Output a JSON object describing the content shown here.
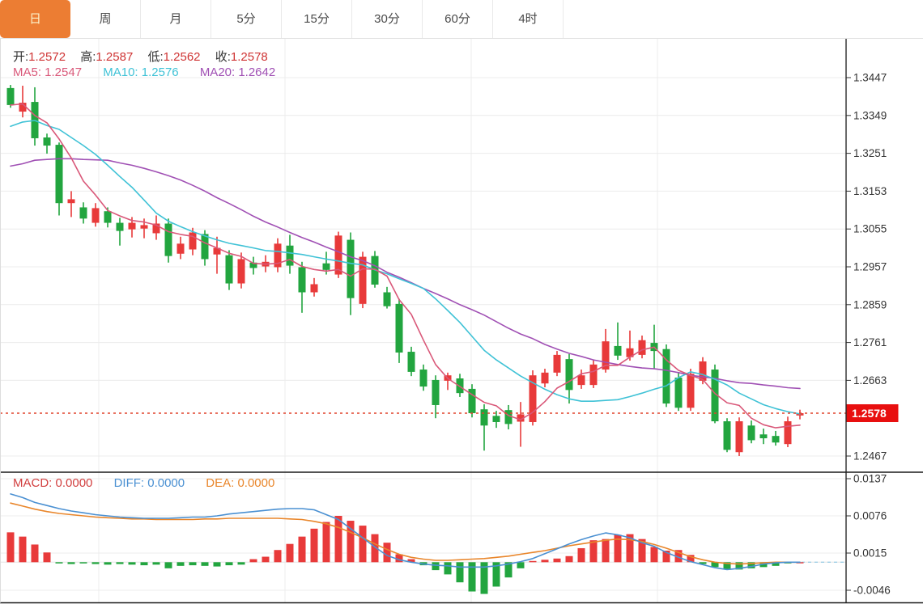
{
  "tabbar": {
    "items": [
      "日",
      "周",
      "月",
      "5分",
      "15分",
      "30分",
      "60分",
      "4时"
    ],
    "selected_index": 0
  },
  "ohlc_legend": {
    "open_label": "开:",
    "open_value": "1.2572",
    "high_label": "高:",
    "high_value": "1.2587",
    "low_label": "低:",
    "low_value": "1.2562",
    "close_label": "收:",
    "close_value": "1.2578"
  },
  "ma_legend": {
    "ma5": "MA5: 1.2547",
    "ma10": "MA10: 1.2576",
    "ma20": "MA20: 1.2642"
  },
  "macd_legend": {
    "macd": "MACD: 0.0000",
    "diff": "DIFF: 0.0000",
    "dea": "DEA: 0.0000"
  },
  "price_axis": {
    "tick_labels": [
      "1.3447",
      "1.3349",
      "1.3251",
      "1.3153",
      "1.3055",
      "1.2957",
      "1.2859",
      "1.2761",
      "1.2663",
      "1.2467"
    ],
    "tick_values": [
      1.3447,
      1.3349,
      1.3251,
      1.3153,
      1.3055,
      1.2957,
      1.2859,
      1.2761,
      1.2663,
      1.2467
    ],
    "last_price_label": "1.2578",
    "last_price": 1.2578
  },
  "macd_axis": {
    "tick_labels": [
      "0.0137",
      "0.0076",
      "0.0015",
      "-0.0046"
    ],
    "tick_values": [
      0.0137,
      0.0076,
      0.0015,
      -0.0046
    ]
  },
  "colors": {
    "up": "#e83a3a",
    "down": "#22a53f",
    "ma5": "#d95879",
    "ma10": "#3fc2d6",
    "ma20": "#a050b4",
    "diff": "#4a90d2",
    "dea": "#e9862b",
    "macd_label": "#d23f3f",
    "tab_accent": "#ec7d33",
    "badge": "#e80f0f",
    "price_line": "#e0432d",
    "grid": "#ececec",
    "axis": "#333333"
  },
  "chart_data": [
    {
      "type": "candlestick",
      "title": "Daily K-line with MA5/MA10/MA20",
      "legend_position": "top-left",
      "grid": true,
      "ylim": [
        1.242,
        1.35
      ],
      "last_price": 1.2578,
      "candles_ohlc": [
        [
          1.342,
          1.3428,
          1.3369,
          1.3376
        ],
        [
          1.3359,
          1.3426,
          1.3344,
          1.3382
        ],
        [
          1.3384,
          1.3422,
          1.3271,
          1.329
        ],
        [
          1.3292,
          1.3302,
          1.325,
          1.3271
        ],
        [
          1.3273,
          1.3279,
          1.309,
          1.3122
        ],
        [
          1.3122,
          1.3153,
          1.3086,
          1.3132
        ],
        [
          1.3111,
          1.3124,
          1.3069,
          1.3082
        ],
        [
          1.3071,
          1.3122,
          1.3061,
          1.3109
        ],
        [
          1.3101,
          1.3111,
          1.3059,
          1.3071
        ],
        [
          1.3071,
          1.3084,
          1.3012,
          1.305
        ],
        [
          1.3054,
          1.3086,
          1.3033,
          1.3071
        ],
        [
          1.3056,
          1.3082,
          1.3031,
          1.3065
        ],
        [
          1.3044,
          1.309,
          1.3027,
          1.3069
        ],
        [
          1.3069,
          1.3082,
          1.2968,
          1.2985
        ],
        [
          1.2991,
          1.3035,
          1.2977,
          1.3017
        ],
        [
          1.3002,
          1.3058,
          1.2987,
          1.3046
        ],
        [
          1.3042,
          1.3052,
          1.296,
          1.2977
        ],
        [
          1.2989,
          1.3035,
          1.2939,
          1.3006
        ],
        [
          1.2987,
          1.3,
          1.2897,
          1.2914
        ],
        [
          1.2914,
          1.2994,
          1.2901,
          1.2977
        ],
        [
          1.2968,
          1.2983,
          1.2937,
          1.2954
        ],
        [
          1.2958,
          1.2987,
          1.2943,
          1.297
        ],
        [
          1.2956,
          1.3031,
          1.2943,
          1.3017
        ],
        [
          1.3012,
          1.304,
          1.2939,
          1.296
        ],
        [
          1.2956,
          1.297,
          1.2838,
          1.2891
        ],
        [
          1.2891,
          1.2928,
          1.288,
          1.2912
        ],
        [
          1.2966,
          1.2996,
          1.2937,
          1.2949
        ],
        [
          1.2937,
          1.3048,
          1.2928,
          1.3038
        ],
        [
          1.3027,
          1.3046,
          1.2832,
          1.2876
        ],
        [
          1.2861,
          1.2996,
          1.285,
          1.2983
        ],
        [
          1.2985,
          1.2998,
          1.2903,
          1.2911
        ],
        [
          1.2891,
          1.2905,
          1.2849,
          1.2855
        ],
        [
          1.2861,
          1.2874,
          1.2708,
          1.2735
        ],
        [
          1.2737,
          1.275,
          1.2674,
          1.2685
        ],
        [
          1.2691,
          1.2704,
          1.2636,
          1.2647
        ],
        [
          1.2664,
          1.2676,
          1.2565,
          1.2599
        ],
        [
          1.2662,
          1.2683,
          1.2638,
          1.2676
        ],
        [
          1.2668,
          1.268,
          1.262,
          1.263
        ],
        [
          1.2641,
          1.2653,
          1.2567,
          1.2578
        ],
        [
          1.2588,
          1.2601,
          1.2481,
          1.2546
        ],
        [
          1.2571,
          1.2584,
          1.254,
          1.2555
        ],
        [
          1.2586,
          1.2599,
          1.2536,
          1.255
        ],
        [
          1.2556,
          1.2607,
          1.2491,
          1.2575
        ],
        [
          1.2555,
          1.2689,
          1.2546,
          1.2676
        ],
        [
          1.2655,
          1.2693,
          1.2645,
          1.2683
        ],
        [
          1.2683,
          1.2739,
          1.2674,
          1.2729
        ],
        [
          1.2718,
          1.2731,
          1.2603,
          1.2638
        ],
        [
          1.2651,
          1.2691,
          1.2641,
          1.2676
        ],
        [
          1.2651,
          1.2716,
          1.2643,
          1.2704
        ],
        [
          1.2691,
          1.2796,
          1.2683,
          1.2764
        ],
        [
          1.2752,
          1.2813,
          1.2716,
          1.2727
        ],
        [
          1.2723,
          1.2792,
          1.2714,
          1.2746
        ],
        [
          1.2729,
          1.2779,
          1.272,
          1.2767
        ],
        [
          1.276,
          1.2807,
          1.2693,
          1.2739
        ],
        [
          1.2744,
          1.2756,
          1.2594,
          1.2603
        ],
        [
          1.267,
          1.2683,
          1.2584,
          1.2592
        ],
        [
          1.2592,
          1.2693,
          1.2584,
          1.268
        ],
        [
          1.2662,
          1.2723,
          1.2653,
          1.2712
        ],
        [
          1.2691,
          1.2704,
          1.2552,
          1.2557
        ],
        [
          1.2557,
          1.2565,
          1.2477,
          1.2483
        ],
        [
          1.2477,
          1.2567,
          1.2467,
          1.2557
        ],
        [
          1.2546,
          1.2559,
          1.25,
          1.2508
        ],
        [
          1.2523,
          1.2538,
          1.2498,
          1.2513
        ],
        [
          1.2519,
          1.2532,
          1.2494,
          1.2502
        ],
        [
          1.2498,
          1.2569,
          1.249,
          1.2557
        ],
        [
          1.2572,
          1.2587,
          1.2562,
          1.2578
        ]
      ],
      "ma5": [
        1.3376,
        1.3379,
        1.3349,
        1.333,
        1.3288,
        1.3239,
        1.3179,
        1.3143,
        1.3103,
        1.3089,
        1.3077,
        1.3073,
        1.3065,
        1.3048,
        1.3041,
        1.3036,
        1.3019,
        1.3006,
        1.2992,
        1.2984,
        1.2966,
        1.2964,
        1.2966,
        1.2976,
        1.2958,
        1.295,
        1.2946,
        1.295,
        1.2933,
        1.2952,
        1.2951,
        1.2933,
        1.2872,
        1.2834,
        1.2767,
        1.2704,
        1.2668,
        1.2647,
        1.2626,
        1.2606,
        1.2597,
        1.2572,
        1.2561,
        1.258,
        1.2608,
        1.2643,
        1.266,
        1.268,
        1.2686,
        1.2702,
        1.2702,
        1.2723,
        1.2742,
        1.2749,
        1.2716,
        1.2689,
        1.2676,
        1.2665,
        1.2629,
        1.2605,
        1.2598,
        1.2565,
        1.2548,
        1.254,
        1.2544,
        1.2547
      ],
      "ma10": [
        1.3321,
        1.3332,
        1.3336,
        1.3323,
        1.3313,
        1.3292,
        1.3271,
        1.3248,
        1.322,
        1.3191,
        1.3163,
        1.313,
        1.3096,
        1.3075,
        1.3061,
        1.3048,
        1.3037,
        1.3027,
        1.3018,
        1.3012,
        1.3006,
        1.2999,
        1.2997,
        1.2993,
        1.2989,
        1.2983,
        1.2977,
        1.2972,
        1.2966,
        1.2962,
        1.2949,
        1.2939,
        1.2926,
        1.2914,
        1.2901,
        1.2874,
        1.2844,
        1.2813,
        1.2777,
        1.2741,
        1.2716,
        1.2695,
        1.2674,
        1.2657,
        1.264,
        1.2626,
        1.2615,
        1.2609,
        1.2609,
        1.2611,
        1.2613,
        1.2621,
        1.263,
        1.264,
        1.2649,
        1.267,
        1.2685,
        1.2678,
        1.2666,
        1.2651,
        1.263,
        1.2615,
        1.26,
        1.259,
        1.2582,
        1.2576
      ],
      "ma20": [
        1.3218,
        1.3224,
        1.3233,
        1.3235,
        1.3237,
        1.3237,
        1.3235,
        1.3234,
        1.3233,
        1.3226,
        1.322,
        1.3212,
        1.3203,
        1.3193,
        1.3182,
        1.3168,
        1.3153,
        1.3136,
        1.3121,
        1.3105,
        1.3088,
        1.3073,
        1.306,
        1.3046,
        1.3033,
        1.3021,
        1.3008,
        1.2996,
        1.2983,
        1.2973,
        1.296,
        1.2943,
        1.293,
        1.2916,
        1.2901,
        1.2888,
        1.2874,
        1.2859,
        1.2846,
        1.2832,
        1.2815,
        1.2798,
        1.2783,
        1.2771,
        1.2756,
        1.2744,
        1.2733,
        1.2725,
        1.2716,
        1.271,
        1.2704,
        1.2699,
        1.2695,
        1.2693,
        1.2689,
        1.2683,
        1.2676,
        1.2672,
        1.2668,
        1.2662,
        1.2657,
        1.2655,
        1.2651,
        1.2648,
        1.2644,
        1.2642
      ]
    },
    {
      "type": "bar",
      "title": "MACD(12,26,9)",
      "grid": true,
      "ylim": [
        -0.0065,
        0.015
      ],
      "hist": [
        0.0049,
        0.0042,
        0.0029,
        0.0016,
        -0.0002,
        -0.0003,
        -0.0002,
        -0.0003,
        -0.0004,
        -0.0003,
        -0.0004,
        -0.0005,
        -0.0004,
        -0.001,
        -0.0006,
        -0.0005,
        -0.0006,
        -0.0007,
        -0.0005,
        -0.0004,
        0.0005,
        0.0009,
        0.002,
        0.003,
        0.0042,
        0.0055,
        0.0066,
        0.0076,
        0.0068,
        0.006,
        0.0046,
        0.0032,
        0.0013,
        0.0005,
        -0.0005,
        -0.0013,
        -0.002,
        -0.0033,
        -0.0048,
        -0.0052,
        -0.004,
        -0.0025,
        -0.001,
        0.0002,
        0.0004,
        0.0006,
        0.001,
        0.0023,
        0.0036,
        0.0038,
        0.0045,
        0.0046,
        0.0038,
        0.0025,
        0.0019,
        0.002,
        0.0012,
        -0.0003,
        -0.0008,
        -0.0012,
        -0.0012,
        -0.001,
        -0.0008,
        -0.0006,
        -0.0002,
        0.0
      ],
      "diff": [
        0.0112,
        0.0106,
        0.0098,
        0.0093,
        0.0088,
        0.0084,
        0.0081,
        0.0078,
        0.0076,
        0.0074,
        0.0073,
        0.0072,
        0.0072,
        0.0072,
        0.0073,
        0.0074,
        0.0074,
        0.0076,
        0.0079,
        0.0081,
        0.0083,
        0.0085,
        0.0087,
        0.0088,
        0.0088,
        0.0086,
        0.0078,
        0.007,
        0.0055,
        0.004,
        0.0025,
        0.0011,
        0.0004,
        0.0,
        -0.0003,
        -0.0005,
        -0.0006,
        -0.0008,
        -0.0008,
        -0.0008,
        -0.0006,
        -0.0003,
        0.0001,
        0.0006,
        0.0014,
        0.0022,
        0.003,
        0.0037,
        0.0043,
        0.0048,
        0.0045,
        0.004,
        0.0032,
        0.0026,
        0.0016,
        0.0008,
        0.0001,
        -0.0004,
        -0.0009,
        -0.0012,
        -0.001,
        -0.0007,
        -0.0003,
        -0.0001,
        0.0,
        0.0
      ],
      "dea": [
        0.0097,
        0.0092,
        0.0087,
        0.0083,
        0.008,
        0.0078,
        0.0076,
        0.0074,
        0.0073,
        0.0072,
        0.0071,
        0.0071,
        0.007,
        0.007,
        0.007,
        0.007,
        0.0071,
        0.0071,
        0.0072,
        0.0072,
        0.0072,
        0.0072,
        0.0072,
        0.0071,
        0.007,
        0.0067,
        0.0063,
        0.0057,
        0.0049,
        0.004,
        0.003,
        0.0021,
        0.0013,
        0.0008,
        0.0005,
        0.0003,
        0.0003,
        0.0004,
        0.0005,
        0.0006,
        0.0008,
        0.001,
        0.0013,
        0.0016,
        0.0019,
        0.0023,
        0.0027,
        0.003,
        0.0033,
        0.0036,
        0.0038,
        0.0037,
        0.0034,
        0.0029,
        0.0023,
        0.0016,
        0.0009,
        0.0004,
        0.0,
        -0.0002,
        -0.0003,
        -0.0002,
        -0.0001,
        0.0,
        0.0,
        0.0
      ]
    }
  ]
}
